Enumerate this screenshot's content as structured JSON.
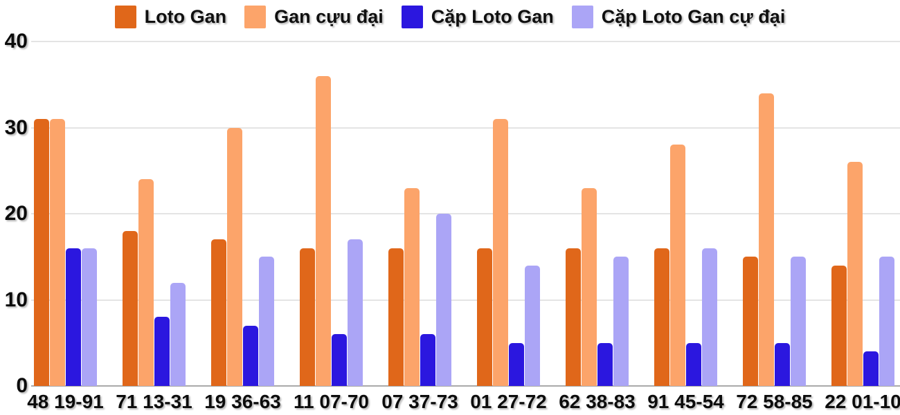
{
  "chart_data": {
    "type": "bar",
    "title": "",
    "xlabel": "",
    "ylabel": "",
    "categories": [
      "48 19-91",
      "71 13-31",
      "19 36-63",
      "11 07-70",
      "07 37-73",
      "01 27-72",
      "62 38-83",
      "91 45-54",
      "72 58-85",
      "22 01-10"
    ],
    "series": [
      {
        "name": "Loto Gan",
        "color": "#e0671a",
        "values": [
          31,
          18,
          17,
          16,
          16,
          16,
          16,
          16,
          15,
          14
        ]
      },
      {
        "name": "Gan cựu đại",
        "color": "#fca46a",
        "values": [
          31,
          24,
          30,
          36,
          23,
          31,
          23,
          28,
          34,
          26
        ]
      },
      {
        "name": "Cặp Loto Gan",
        "color": "#2b17df",
        "values": [
          16,
          8,
          7,
          6,
          6,
          5,
          5,
          5,
          5,
          4
        ]
      },
      {
        "name": "Cặp Loto Gan cự đại",
        "color": "#aba5f6",
        "values": [
          16,
          12,
          15,
          17,
          20,
          14,
          15,
          16,
          15,
          15
        ]
      }
    ],
    "ylim": [
      0,
      40
    ],
    "yticks": [
      0,
      10,
      20,
      30,
      40
    ],
    "grid": true,
    "legend_position": "top",
    "colors": {
      "grid_line": "#e4e4e4",
      "axis_line": "#a9a9a9",
      "text": "#0c0c0c"
    }
  }
}
